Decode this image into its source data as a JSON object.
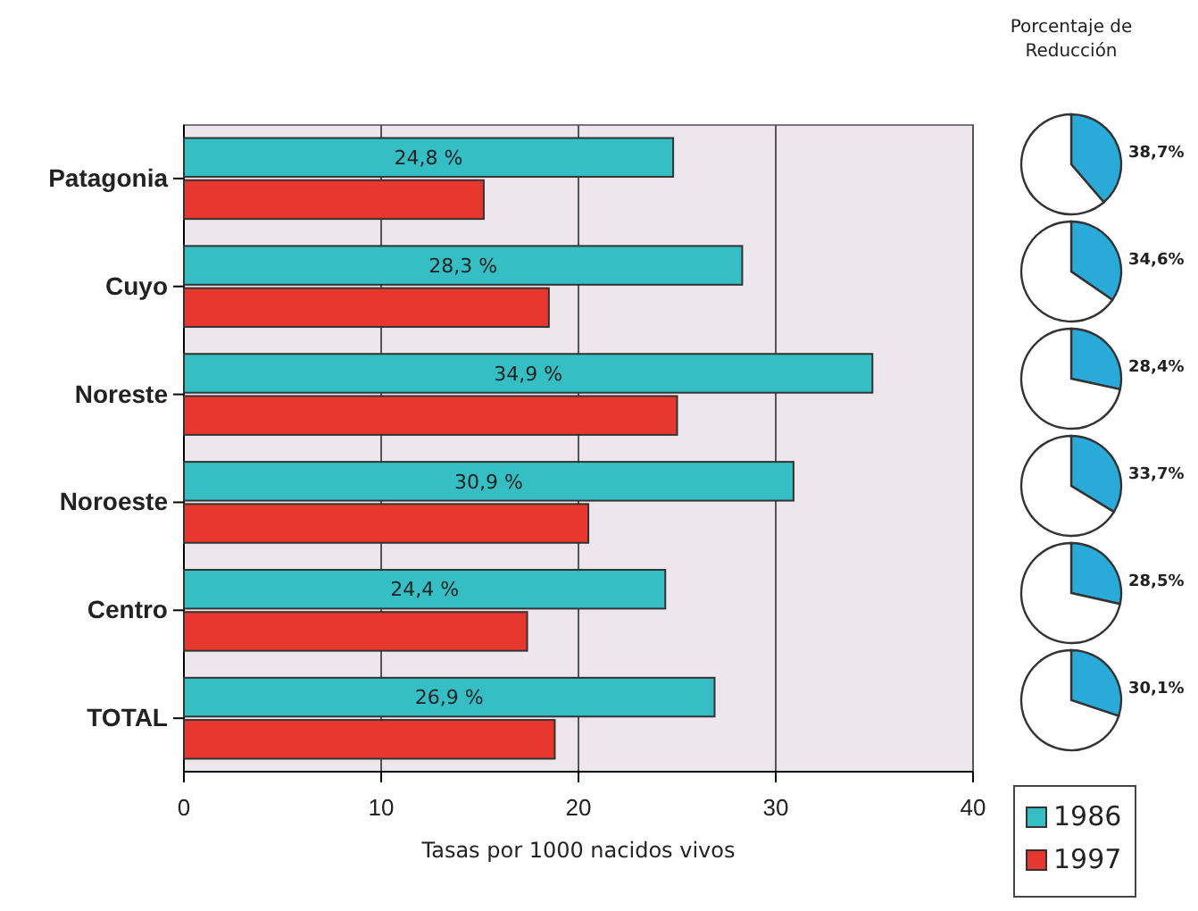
{
  "chart_data": [
    {
      "type": "bar",
      "orientation": "horizontal",
      "categories": [
        "Patagonia",
        "Cuyo",
        "Noreste",
        "Noroeste",
        "Centro",
        "TOTAL"
      ],
      "series": [
        {
          "name": "1986",
          "color": "#35bfc4",
          "values": [
            24.8,
            28.3,
            34.9,
            30.9,
            24.4,
            26.9
          ],
          "value_labels": [
            "24,8 %",
            "28,3 %",
            "34,9 %",
            "30,9 %",
            "24,4 %",
            "26,9 %"
          ]
        },
        {
          "name": "1997",
          "color": "#e8372d",
          "values": [
            15.2,
            18.5,
            25.0,
            20.5,
            17.4,
            18.8
          ]
        }
      ],
      "xlim": [
        0,
        40
      ],
      "xticks": [
        0,
        10,
        20,
        30,
        40
      ],
      "xlabel": "Tasas por 1000 nacidos vivos",
      "grid": "x",
      "legend": "bottom right"
    },
    {
      "type": "pie",
      "title": "Porcentaje de Reducción",
      "categories": [
        null,
        null
      ],
      "values": [
        38.7,
        61.3
      ],
      "colors": [
        "#2aaad9",
        "#ffffff"
      ],
      "value_labels": [
        "38,7%",
        null
      ]
    },
    {
      "type": "pie",
      "categories": [
        null,
        null
      ],
      "values": [
        34.6,
        65.4
      ],
      "colors": [
        "#2aaad9",
        "#ffffff"
      ],
      "value_labels": [
        "34,6%",
        null
      ]
    },
    {
      "type": "pie",
      "categories": [
        null,
        null
      ],
      "values": [
        28.4,
        71.6
      ],
      "colors": [
        "#2aaad9",
        "#ffffff"
      ],
      "value_labels": [
        "28,4%",
        null
      ]
    },
    {
      "type": "pie",
      "categories": [
        null,
        null
      ],
      "values": [
        33.7,
        66.3
      ],
      "colors": [
        "#2aaad9",
        "#ffffff"
      ],
      "value_labels": [
        "33,7%",
        null
      ]
    },
    {
      "type": "pie",
      "categories": [
        null,
        null
      ],
      "values": [
        28.5,
        71.5
      ],
      "colors": [
        "#2aaad9",
        "#ffffff"
      ],
      "value_labels": [
        "28,5%",
        null
      ]
    },
    {
      "type": "pie",
      "categories": [
        null,
        null
      ],
      "values": [
        30.1,
        69.9
      ],
      "colors": [
        "#2aaad9",
        "#ffffff"
      ],
      "value_labels": [
        "30,1%",
        null
      ]
    }
  ]
}
